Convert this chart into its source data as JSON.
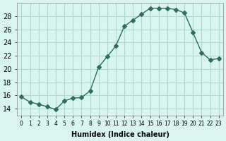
{
  "x": [
    0,
    1,
    2,
    3,
    4,
    5,
    6,
    7,
    8,
    9,
    10,
    11,
    12,
    13,
    14,
    15,
    16,
    17,
    18,
    19,
    20,
    21,
    22,
    23
  ],
  "y": [
    15.8,
    15.0,
    14.7,
    14.3,
    13.9,
    15.2,
    15.6,
    15.7,
    16.7,
    20.3,
    21.9,
    23.5,
    26.5,
    27.4,
    28.3,
    29.2,
    29.2,
    29.2,
    29.0,
    28.5,
    25.5,
    22.5,
    21.4,
    21.6
  ],
  "line_color": "#2d6e5e",
  "marker": "D",
  "marker_size": 3,
  "bg_color": "#d8f5f0",
  "grid_color": "#b0d8d0",
  "xlabel": "Humidex (Indice chaleur)",
  "ylim": [
    13,
    30
  ],
  "yticks": [
    14,
    16,
    18,
    20,
    22,
    24,
    26,
    28
  ],
  "xlim": [
    -0.5,
    23.5
  ],
  "xticks": [
    0,
    1,
    2,
    3,
    4,
    5,
    6,
    7,
    8,
    9,
    10,
    11,
    12,
    13,
    14,
    15,
    16,
    17,
    18,
    19,
    20,
    21,
    22,
    23
  ],
  "xtick_labels": [
    "0",
    "1",
    "2",
    "3",
    "4",
    "5",
    "6",
    "7",
    "8",
    "9",
    "10",
    "11",
    "12",
    "13",
    "14",
    "15",
    "16",
    "17",
    "18",
    "19",
    "20",
    "21",
    "22",
    "23"
  ]
}
